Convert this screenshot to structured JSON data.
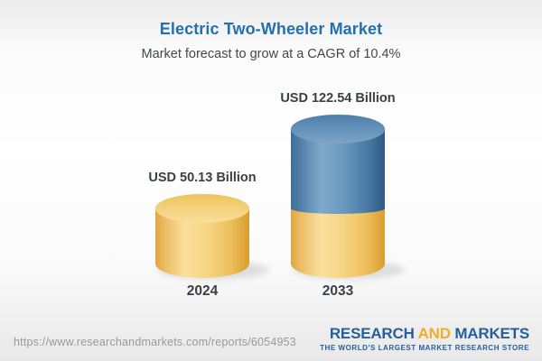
{
  "header": {
    "title": "Electric Two-Wheeler Market",
    "subtitle": "Market forecast to grow at a CAGR of 10.4%"
  },
  "chart_data": {
    "type": "bar",
    "variant": "3d-cylinder-infographic",
    "title": "Electric Two-Wheeler Market",
    "subtitle": "Market forecast to grow at a CAGR of 10.4%",
    "cagr": "10.4%",
    "unit": "USD Billion",
    "categories": [
      "2024",
      "2033"
    ],
    "values": [
      50.13,
      122.54
    ],
    "value_labels": [
      "USD 50.13 Billion",
      "USD 122.54 Billion"
    ],
    "ylim": [
      0,
      122.54
    ],
    "grid": false,
    "legend": "none",
    "colors": {
      "base_gold": "#F2CC74",
      "growth_blue": "#5D92BA",
      "title_blue": "#2270AE",
      "label_dark": "#3B4045"
    },
    "note": "2033 cylinder is stacked: gold lower segment equals 2024 value, blue upper segment is forecast growth"
  },
  "footer": {
    "url": "https://www.researchandmarkets.com/reports/6054953",
    "logo": {
      "part1": "RESEARCH",
      "part2": "AND",
      "part3": "MARKETS",
      "tagline": "THE WORLD'S LARGEST MARKET RESEARCH STORE",
      "blue": "#275E9C",
      "gold": "#EFAD2C"
    }
  }
}
